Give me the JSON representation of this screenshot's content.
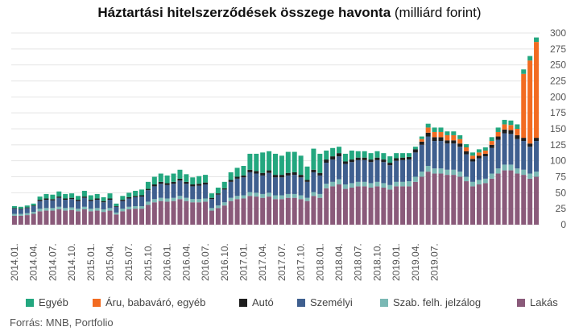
{
  "title_bold": "Háztartási hitelszerződések összege havonta",
  "title_rest": "(milliárd forint)",
  "source": "Forrás: MNB, Portfolio",
  "chart_data": {
    "type": "bar",
    "stacked": true,
    "ylim": [
      0,
      300
    ],
    "y_ticks": [
      0,
      25,
      50,
      75,
      100,
      125,
      150,
      175,
      200,
      225,
      250,
      275,
      300
    ],
    "y_axis_side": "right",
    "grid": true,
    "legend_placement": "bottom",
    "x_tick_labels": [
      "2014.01.",
      "2014.04.",
      "2014.07.",
      "2014.10.",
      "2015.01.",
      "2015.04.",
      "2015.07.",
      "2015.10.",
      "2016.01.",
      "2016.04.",
      "2016.07.",
      "2016.10.",
      "2017.01.",
      "2017.04.",
      "2017.07.",
      "2017.10.",
      "2018.01.",
      "2018.04.",
      "2018.07.",
      "2018.10.",
      "2019.01.",
      "2019.04.",
      "2019.07."
    ],
    "series": [
      {
        "name": "Lakás",
        "color": "#8a5a7a",
        "values": [
          14,
          14,
          15,
          17,
          21,
          22,
          22,
          24,
          22,
          23,
          21,
          24,
          21,
          22,
          20,
          22,
          16,
          21,
          24,
          25,
          25,
          31,
          35,
          37,
          36,
          37,
          40,
          37,
          35,
          35,
          36,
          22,
          26,
          30,
          37,
          40,
          41,
          45,
          44,
          42,
          44,
          40,
          40,
          42,
          42,
          40,
          37,
          45,
          42,
          57,
          60,
          63,
          56,
          58,
          60,
          60,
          58,
          60,
          58,
          55,
          60,
          60,
          60,
          67,
          75,
          83,
          80,
          80,
          78,
          78,
          75,
          68,
          60,
          63,
          65,
          72,
          80,
          85,
          85,
          80,
          78,
          72,
          75
        ]
      },
      {
        "name": "Szab. felh. jelzálog",
        "color": "#7ab8b4",
        "values": [
          3,
          3,
          3,
          3,
          4,
          4,
          4,
          4,
          4,
          4,
          4,
          4,
          4,
          4,
          4,
          4,
          3,
          4,
          4,
          4,
          4,
          5,
          5,
          5,
          5,
          5,
          5,
          5,
          5,
          5,
          5,
          4,
          4,
          5,
          5,
          5,
          5,
          6,
          6,
          6,
          6,
          6,
          6,
          6,
          6,
          6,
          5,
          6,
          6,
          7,
          7,
          8,
          7,
          7,
          7,
          7,
          7,
          7,
          7,
          7,
          7,
          7,
          8,
          8,
          8,
          9,
          8,
          8,
          8,
          8,
          8,
          7,
          7,
          7,
          7,
          8,
          8,
          9,
          9,
          8,
          8,
          8,
          8
        ]
      },
      {
        "name": "Személyi",
        "color": "#3f5f8f",
        "values": [
          8,
          7,
          8,
          9,
          12,
          13,
          12,
          14,
          13,
          13,
          12,
          14,
          12,
          13,
          11,
          13,
          9,
          12,
          13,
          14,
          15,
          18,
          20,
          22,
          21,
          22,
          24,
          22,
          20,
          21,
          22,
          14,
          17,
          20,
          25,
          27,
          28,
          31,
          30,
          29,
          31,
          28,
          28,
          29,
          30,
          28,
          25,
          31,
          29,
          33,
          35,
          36,
          32,
          33,
          34,
          34,
          33,
          34,
          33,
          31,
          33,
          34,
          34,
          38,
          42,
          46,
          43,
          43,
          41,
          41,
          39,
          35,
          32,
          34,
          35,
          40,
          45,
          49,
          48,
          46,
          45,
          42,
          48
        ]
      },
      {
        "name": "Autó",
        "color": "#1e1e1e",
        "values": [
          1,
          1,
          1,
          1,
          2,
          2,
          2,
          2,
          2,
          2,
          2,
          2,
          2,
          2,
          2,
          2,
          1,
          2,
          2,
          2,
          2,
          2,
          3,
          3,
          3,
          3,
          3,
          3,
          3,
          3,
          3,
          2,
          2,
          2,
          3,
          3,
          3,
          4,
          4,
          4,
          4,
          4,
          4,
          4,
          4,
          4,
          3,
          4,
          4,
          5,
          5,
          5,
          4,
          4,
          4,
          4,
          4,
          4,
          4,
          4,
          4,
          4,
          4,
          5,
          5,
          6,
          6,
          6,
          5,
          5,
          5,
          5,
          4,
          4,
          4,
          5,
          5,
          6,
          6,
          6,
          5,
          5,
          5
        ]
      },
      {
        "name": "Áru, babaváró, egyéb",
        "color": "#f26b21",
        "values": [
          0,
          0,
          0,
          0,
          0,
          0,
          0,
          0,
          0,
          0,
          0,
          0,
          0,
          0,
          0,
          0,
          0,
          0,
          0,
          0,
          0,
          0,
          0,
          0,
          0,
          0,
          0,
          0,
          0,
          0,
          0,
          0,
          0,
          0,
          0,
          0,
          0,
          0,
          0,
          0,
          0,
          0,
          0,
          0,
          0,
          0,
          0,
          0,
          0,
          0,
          0,
          0,
          0,
          0,
          0,
          0,
          0,
          0,
          0,
          0,
          0,
          0,
          0,
          0,
          4,
          8,
          8,
          8,
          8,
          8,
          7,
          6,
          5,
          5,
          5,
          6,
          7,
          8,
          8,
          10,
          100,
          130,
          150
        ]
      },
      {
        "name": "Egyéb",
        "color": "#23a77f",
        "values": [
          3,
          3,
          3,
          3,
          5,
          7,
          7,
          8,
          7,
          7,
          6,
          9,
          7,
          7,
          6,
          8,
          4,
          6,
          7,
          8,
          9,
          11,
          12,
          13,
          12,
          13,
          14,
          12,
          11,
          12,
          12,
          7,
          9,
          10,
          12,
          14,
          15,
          25,
          27,
          32,
          30,
          33,
          30,
          33,
          32,
          30,
          21,
          33,
          30,
          14,
          13,
          10,
          12,
          14,
          10,
          10,
          10,
          10,
          10,
          10,
          8,
          7,
          6,
          4,
          4,
          6,
          7,
          7,
          6,
          6,
          6,
          5,
          5,
          5,
          5,
          6,
          7,
          7,
          7,
          7,
          7,
          7,
          7
        ]
      }
    ]
  },
  "legend_items": [
    {
      "label": "Egyéb",
      "color": "#23a77f"
    },
    {
      "label": "Áru, babaváró, egyéb",
      "color": "#f26b21"
    },
    {
      "label": "Autó",
      "color": "#1e1e1e"
    },
    {
      "label": "Személyi",
      "color": "#3f5f8f"
    },
    {
      "label": "Szab. felh. jelzálog",
      "color": "#7ab8b4"
    },
    {
      "label": "Lakás",
      "color": "#8a5a7a"
    }
  ]
}
